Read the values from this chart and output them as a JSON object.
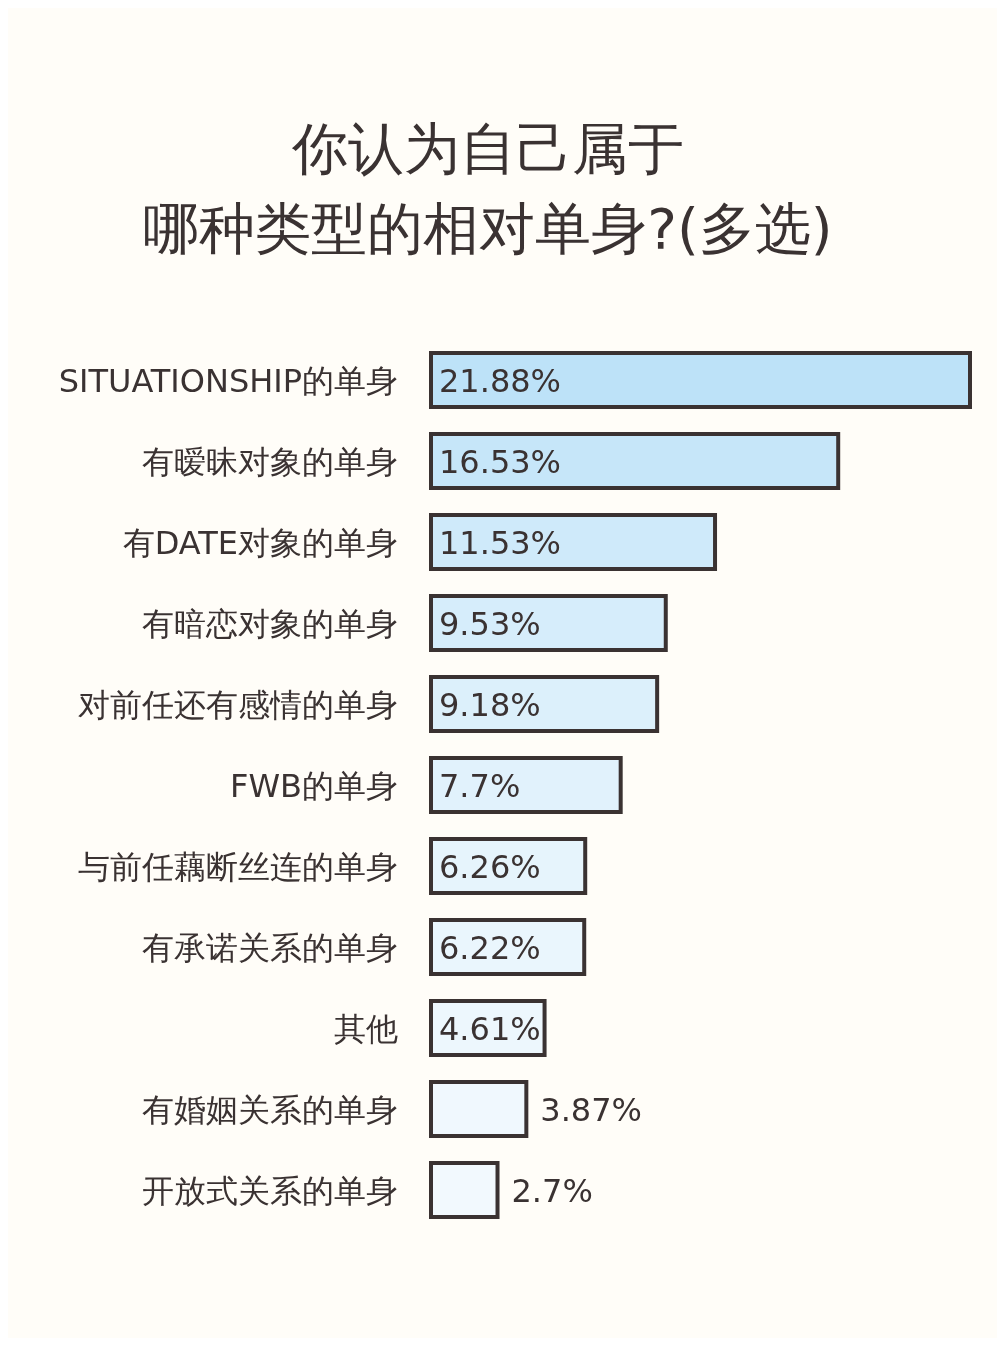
{
  "chart_data": {
    "type": "bar",
    "orientation": "horizontal",
    "title": "你认为自己属于哪种类型的相对单身?(多选)",
    "categories": [
      "SITUATIONSHIP的单身",
      "有暧昧对象的单身",
      "有DATE对象的单身",
      "有暗恋对象的单身",
      "对前任还有感情的单身",
      "FWB的单身",
      "与前任藕断丝连的单身",
      "有承诺关系的单身",
      "其他",
      "有婚姻关系的单身",
      "开放式关系的单身"
    ],
    "values": [
      21.88,
      16.53,
      11.53,
      9.53,
      9.18,
      7.7,
      6.26,
      6.22,
      4.61,
      3.87,
      2.7
    ],
    "value_labels": [
      "21.88%",
      "16.53%",
      "11.53%",
      "9.53%",
      "9.18%",
      "7.7%",
      "6.26%",
      "6.22%",
      "4.61%",
      "3.87%",
      "2.7%"
    ],
    "colors": [
      "#bde2f8",
      "#c6e6f9",
      "#cfeafa",
      "#d6edfb",
      "#dcf0fb",
      "#e1f2fc",
      "#e6f4fc",
      "#eaf6fd",
      "#edf7fd",
      "#f0f8fe",
      "#f2f9fe"
    ],
    "tick_labels": "y"
  }
}
